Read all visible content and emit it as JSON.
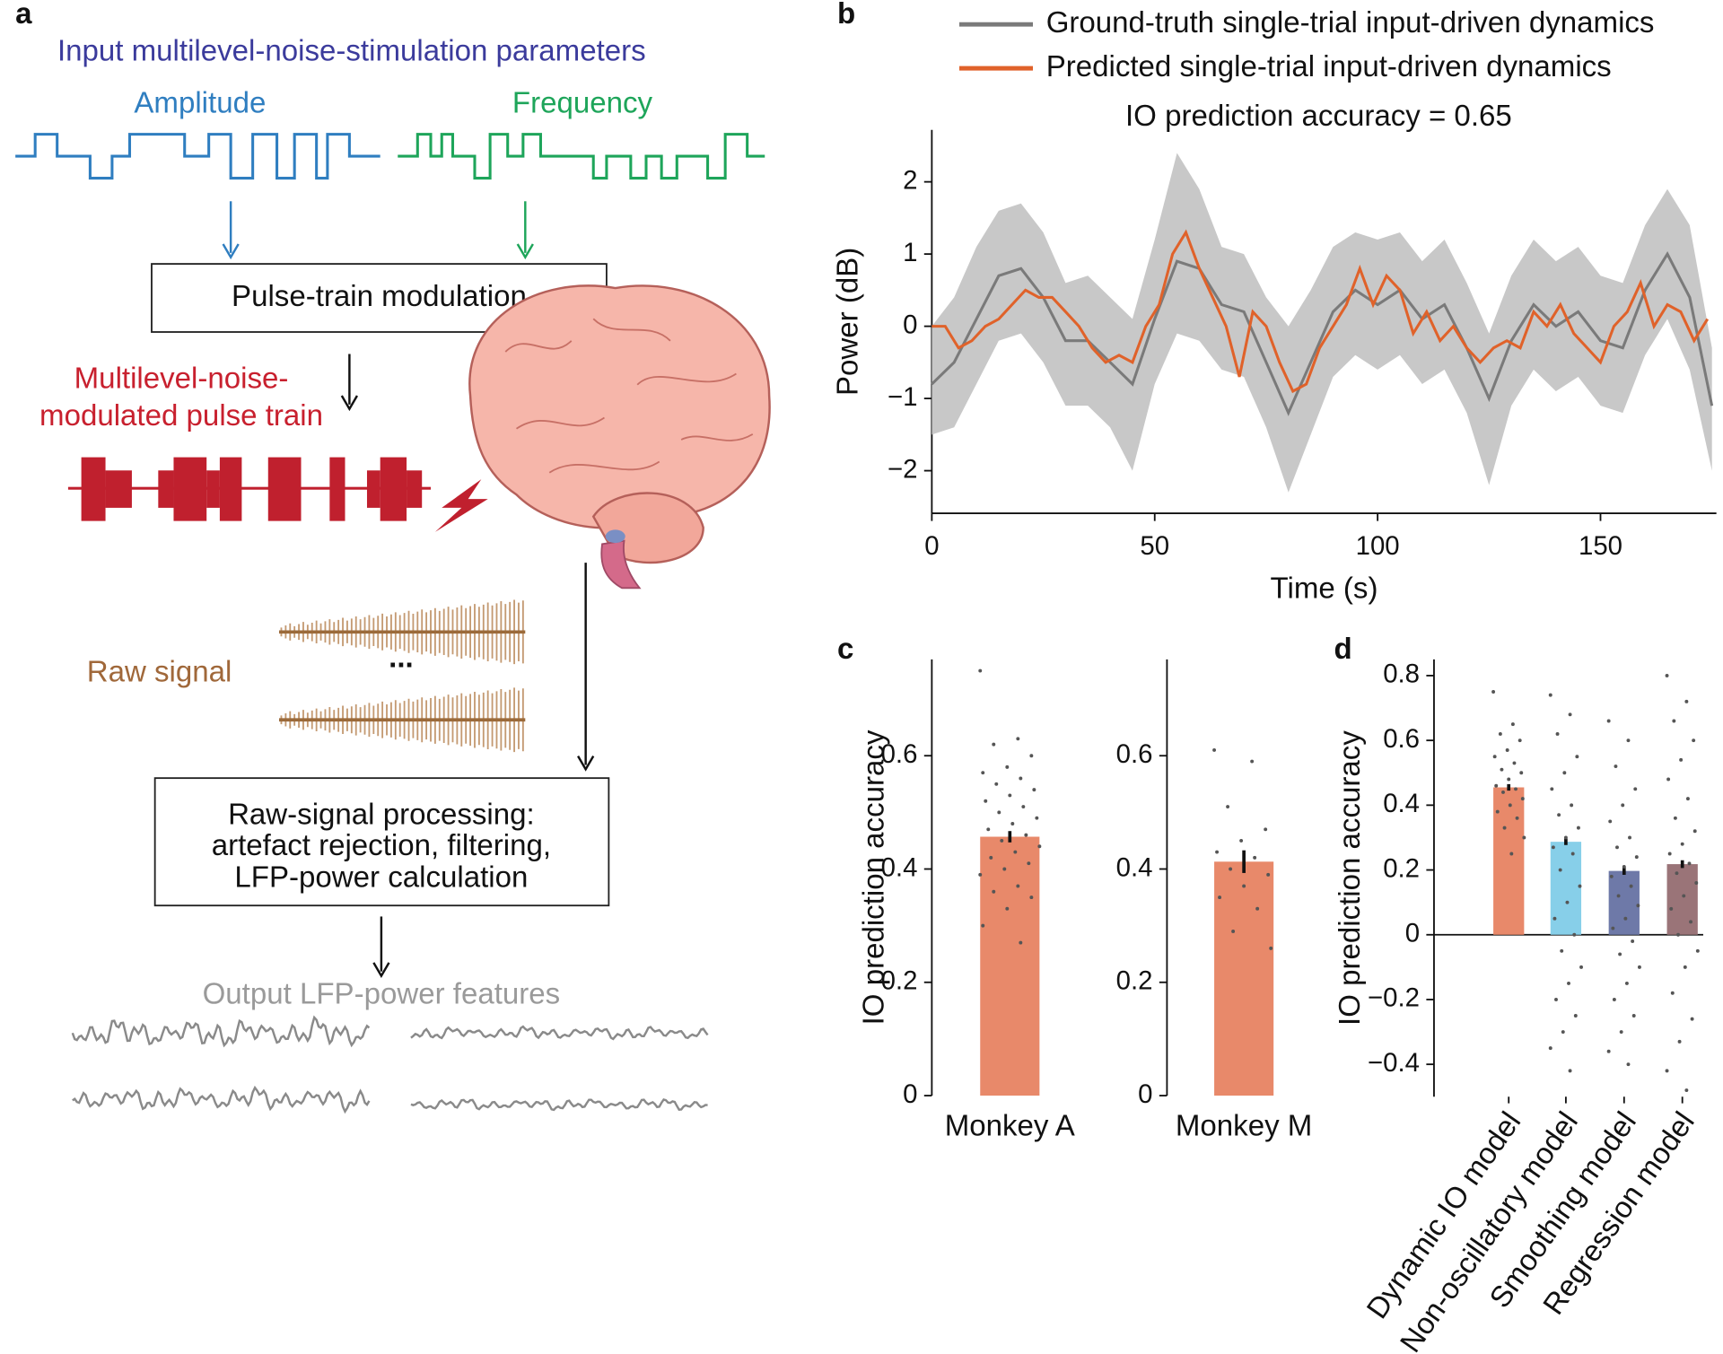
{
  "panel_labels": [
    "a",
    "b",
    "c",
    "d"
  ],
  "diagram": {
    "title": "Input multilevel-noise-stimulation parameters",
    "amplitude_label": "Amplitude",
    "frequency_label": "Frequency",
    "modulation_box": "Pulse-train modulation",
    "pulse_train_label": [
      "Multilevel-noise-",
      "modulated pulse train"
    ],
    "raw_signal_label": "Raw signal",
    "ellipsis": "...",
    "processing_box": [
      "Raw-signal processing:",
      "artefact rejection, filtering,",
      "LFP-power calculation"
    ],
    "output_label": "Output LFP-power features"
  },
  "chart_data": [
    {
      "type": "line",
      "title": "IO prediction accuracy = 0.65",
      "xlabel": "Time (s)",
      "ylabel": "Power (dB)",
      "x": [
        0,
        5,
        10,
        15,
        20,
        25,
        30,
        35,
        40,
        45,
        50,
        55,
        60,
        65,
        70,
        75,
        80,
        85,
        90,
        95,
        100,
        105,
        110,
        115,
        120,
        125,
        130,
        135,
        140,
        145,
        150,
        155,
        160,
        165,
        170,
        175
      ],
      "series": [
        {
          "name": "Ground-truth single-trial input-driven dynamics",
          "color": "#7a7a7a",
          "values": [
            -0.8,
            -0.5,
            0.1,
            0.7,
            0.8,
            0.4,
            -0.2,
            -0.2,
            -0.5,
            -0.8,
            0.1,
            0.9,
            0.8,
            0.3,
            0.2,
            -0.5,
            -1.2,
            -0.5,
            0.2,
            0.5,
            0.3,
            0.5,
            0.1,
            0.3,
            -0.3,
            -1.0,
            -0.2,
            0.3,
            0.0,
            0.2,
            -0.2,
            -0.3,
            0.5,
            1.0,
            0.4,
            -1.1
          ],
          "band_upper": [
            0.0,
            0.4,
            1.1,
            1.6,
            1.7,
            1.3,
            0.6,
            0.7,
            0.4,
            0.1,
            1.2,
            2.4,
            1.9,
            1.1,
            1.0,
            0.4,
            0.0,
            0.5,
            1.1,
            1.3,
            1.2,
            1.3,
            0.9,
            1.2,
            0.6,
            -0.1,
            0.7,
            1.2,
            0.9,
            1.1,
            0.7,
            0.6,
            1.4,
            1.9,
            1.4,
            -0.3
          ],
          "band_lower": [
            -1.5,
            -1.4,
            -0.8,
            -0.2,
            -0.1,
            -0.5,
            -1.1,
            -1.1,
            -1.4,
            -2.0,
            -0.8,
            -0.1,
            -0.2,
            -0.6,
            -0.7,
            -1.4,
            -2.3,
            -1.5,
            -0.7,
            -0.4,
            -0.6,
            -0.4,
            -0.8,
            -0.6,
            -1.2,
            -2.2,
            -1.1,
            -0.6,
            -0.9,
            -0.7,
            -1.1,
            -1.2,
            -0.4,
            0.1,
            -0.6,
            -2.0
          ]
        },
        {
          "name": "Predicted single-trial input-driven dynamics",
          "color": "#e0622a",
          "x": [
            0,
            3,
            6,
            9,
            12,
            15,
            18,
            21,
            24,
            27,
            30,
            33,
            36,
            39,
            42,
            45,
            48,
            51,
            54,
            57,
            60,
            63,
            66,
            69,
            72,
            75,
            78,
            81,
            84,
            87,
            90,
            93,
            96,
            99,
            102,
            105,
            108,
            111,
            114,
            117,
            120,
            123,
            126,
            129,
            132,
            135,
            138,
            141,
            144,
            147,
            150,
            153,
            156,
            159,
            162,
            165,
            168,
            171,
            174
          ],
          "values": [
            0,
            0,
            -0.3,
            -0.2,
            0.0,
            0.1,
            0.3,
            0.5,
            0.4,
            0.4,
            0.2,
            0.0,
            -0.3,
            -0.5,
            -0.4,
            -0.5,
            0.0,
            0.3,
            1.0,
            1.3,
            0.8,
            0.4,
            0.0,
            -0.7,
            0.2,
            0.0,
            -0.5,
            -0.9,
            -0.8,
            -0.3,
            0.0,
            0.3,
            0.8,
            0.3,
            0.7,
            0.5,
            -0.1,
            0.2,
            -0.2,
            0.0,
            -0.3,
            -0.5,
            -0.3,
            -0.2,
            -0.3,
            0.2,
            0.0,
            0.3,
            -0.1,
            -0.3,
            -0.5,
            0.0,
            0.2,
            0.6,
            0.0,
            0.3,
            0.2,
            -0.2,
            0.1
          ]
        }
      ],
      "xlim": [
        0,
        176
      ],
      "xticks": [
        0,
        50,
        100,
        150
      ],
      "ylim": [
        -2.59,
        2.72
      ],
      "yticks": [
        {
          "value": -2,
          "label": "−2"
        },
        {
          "value": -1,
          "label": "−1"
        },
        0,
        1,
        2
      ]
    },
    {
      "type": "bar",
      "ylabel": "IO prediction accuracy",
      "categories": [
        "Monkey A"
      ],
      "values": [
        0.457
      ],
      "errors": [
        0.01
      ],
      "color": "#e8896a",
      "points": [
        [
          0.75,
          0.63,
          0.62,
          0.6,
          0.58,
          0.57,
          0.56,
          0.55,
          0.54,
          0.53,
          0.52,
          0.51,
          0.5,
          0.49,
          0.48,
          0.47,
          0.46,
          0.45,
          0.44,
          0.43,
          0.42,
          0.41,
          0.4,
          0.39,
          0.37,
          0.36,
          0.35,
          0.33,
          0.3,
          0.27
        ]
      ],
      "ylim": [
        0,
        0.77
      ],
      "yticks": [
        0,
        0.2,
        0.4,
        0.6
      ]
    },
    {
      "type": "bar",
      "categories": [
        "Monkey M"
      ],
      "values": [
        0.413
      ],
      "errors": [
        0.02
      ],
      "color": "#e8896a",
      "points": [
        [
          0.61,
          0.59,
          0.51,
          0.47,
          0.45,
          0.43,
          0.42,
          0.4,
          0.39,
          0.37,
          0.35,
          0.33,
          0.29,
          0.26
        ]
      ],
      "ylim": [
        0,
        0.77
      ],
      "yticks": [
        0,
        0.2,
        0.4,
        0.6
      ]
    },
    {
      "type": "bar",
      "ylabel": "IO prediction accuracy",
      "categories": [
        "Dynamic IO model",
        "Non-oscillatory model",
        "Smoothing model",
        "Regression model"
      ],
      "values": [
        0.455,
        0.287,
        0.197,
        0.218
      ],
      "errors": [
        0.01,
        0.01,
        0.012,
        0.012
      ],
      "colors": [
        "#e8896a",
        "#87cfe9",
        "#6e79a8",
        "#9a7478"
      ],
      "points": [
        [
          0.75,
          0.65,
          0.62,
          0.6,
          0.57,
          0.55,
          0.53,
          0.51,
          0.5,
          0.48,
          0.46,
          0.45,
          0.44,
          0.42,
          0.4,
          0.38,
          0.36,
          0.33,
          0.3,
          0.25
        ],
        [
          0.74,
          0.68,
          0.62,
          0.55,
          0.5,
          0.45,
          0.4,
          0.37,
          0.33,
          0.3,
          0.27,
          0.25,
          0.2,
          0.15,
          0.1,
          0.05,
          0.0,
          -0.05,
          -0.1,
          -0.15,
          -0.2,
          -0.25,
          -0.3,
          -0.35,
          -0.42
        ],
        [
          0.66,
          0.6,
          0.52,
          0.45,
          0.4,
          0.35,
          0.3,
          0.27,
          0.24,
          0.21,
          0.18,
          0.15,
          0.12,
          0.09,
          0.05,
          0.02,
          -0.02,
          -0.06,
          -0.1,
          -0.15,
          -0.2,
          -0.25,
          -0.3,
          -0.36,
          -0.4
        ],
        [
          0.8,
          0.72,
          0.66,
          0.6,
          0.54,
          0.48,
          0.42,
          0.36,
          0.32,
          0.28,
          0.25,
          0.22,
          0.19,
          0.16,
          0.12,
          0.08,
          0.04,
          0.0,
          -0.05,
          -0.1,
          -0.18,
          -0.26,
          -0.33,
          -0.42,
          -0.48
        ]
      ],
      "ylim": [
        -0.5,
        0.85
      ],
      "yticks": [
        {
          "value": -0.4,
          "label": "−0.4"
        },
        {
          "value": -0.2,
          "label": "−0.2"
        },
        0,
        0.2,
        0.4,
        0.6,
        0.8
      ]
    }
  ]
}
